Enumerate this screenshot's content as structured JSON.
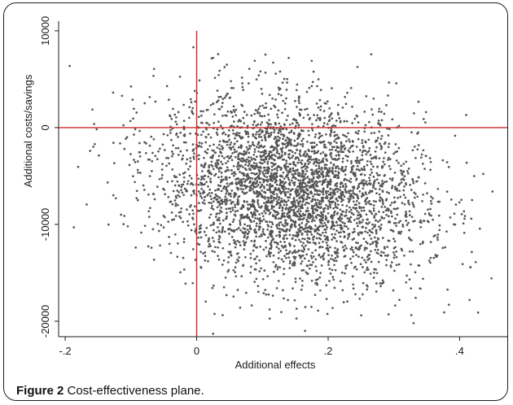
{
  "figure": {
    "caption_label": "Figure 2",
    "caption_text": "Cost-effectiveness plane",
    "caption_period": "."
  },
  "chart_data": {
    "type": "scatter",
    "title": "",
    "xlabel": "Additional effects",
    "ylabel": "Additional costs/savings",
    "xlim": [
      -0.21,
      0.475
    ],
    "ylim": [
      -21600,
      11000
    ],
    "x_ticks": [
      -0.2,
      0,
      0.2,
      0.4
    ],
    "x_tick_labels": [
      "-.2",
      "0",
      ".2",
      ".4"
    ],
    "y_ticks": [
      10000,
      0,
      -10000,
      -20000
    ],
    "y_tick_labels": [
      "10000",
      "0",
      "-10000",
      "-20000"
    ],
    "reference_lines": {
      "x": 0,
      "y": 0,
      "color": "#cc2a2a"
    },
    "grid": false,
    "legend": "none",
    "marker_color": "#555555",
    "simulated_distribution": {
      "n": 3800,
      "x_mean": 0.145,
      "x_sd": 0.1,
      "y_mean": -6500,
      "y_sd": 4700,
      "correlation": -0.2
    },
    "outlier_points": [
      {
        "x": -0.155,
        "y": -1700
      },
      {
        "x": -0.005,
        "y": 8300
      },
      {
        "x": 0.025,
        "y": 7200
      },
      {
        "x": 0.14,
        "y": 7200
      },
      {
        "x": 0.175,
        "y": 6900
      },
      {
        "x": 0.41,
        "y": 1300
      },
      {
        "x": 0.415,
        "y": -17800
      },
      {
        "x": 0.45,
        "y": -6600
      },
      {
        "x": 0.025,
        "y": -21300
      },
      {
        "x": 0.165,
        "y": -21000
      },
      {
        "x": 0.33,
        "y": -20200
      },
      {
        "x": -0.115,
        "y": -9000
      }
    ]
  }
}
